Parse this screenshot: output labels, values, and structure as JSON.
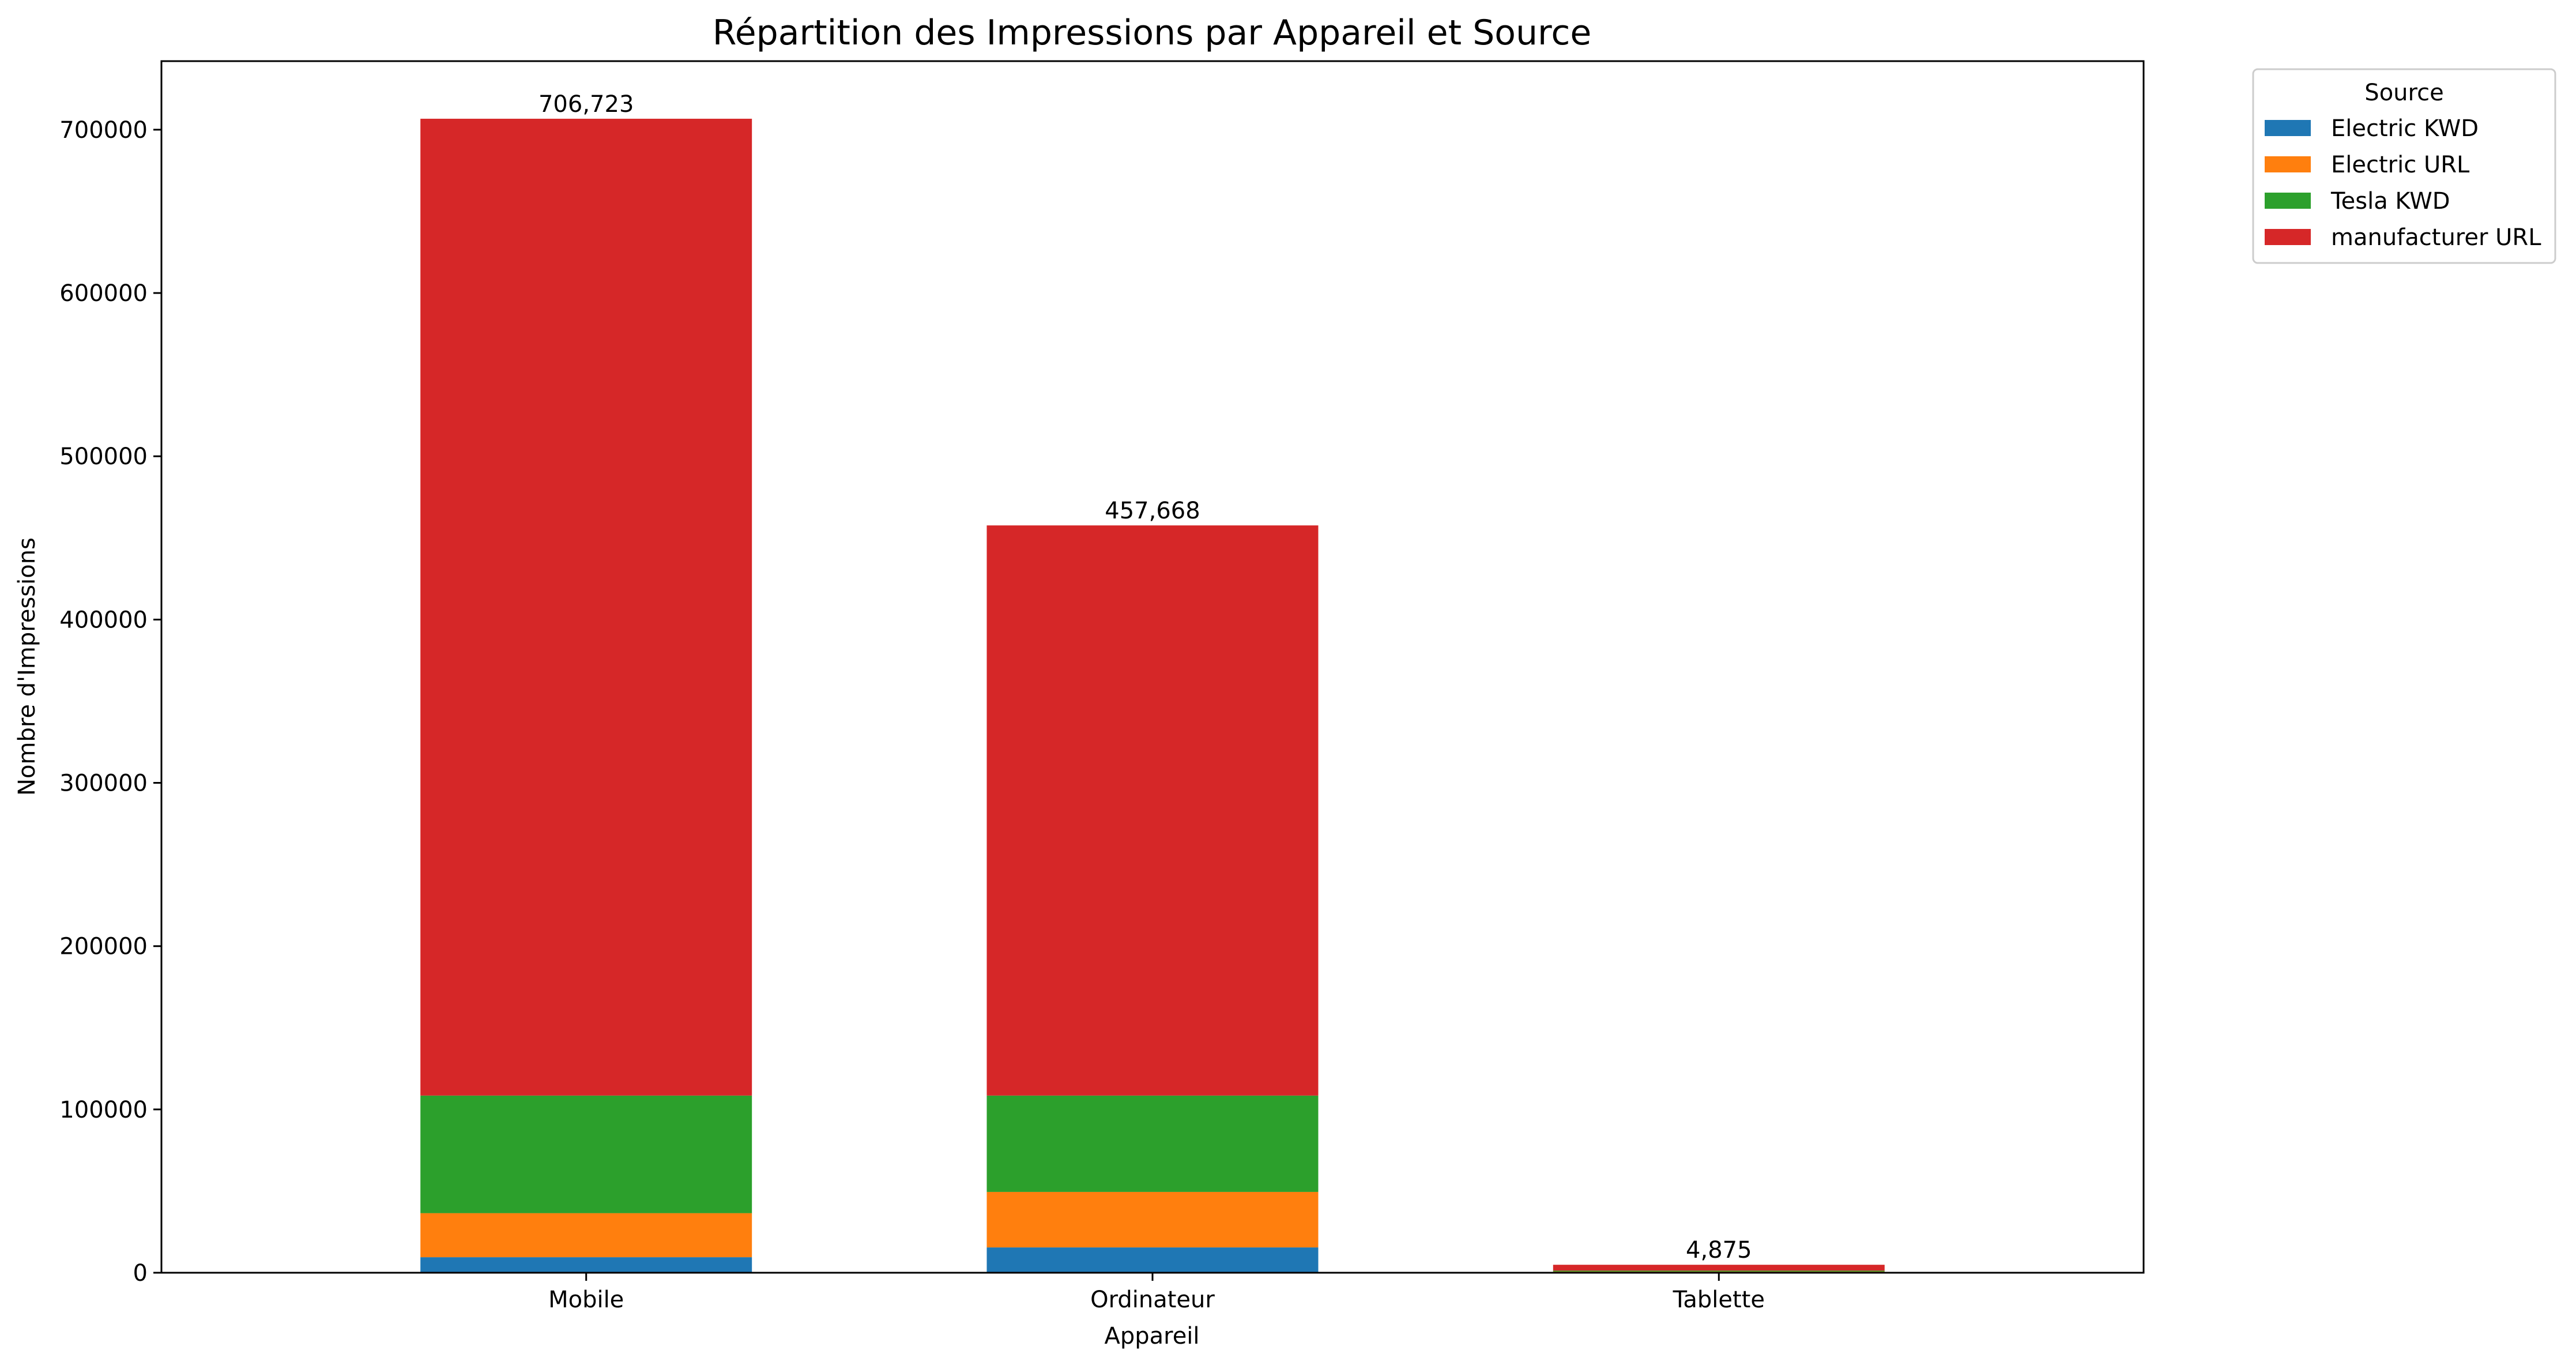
{
  "chart_data": {
    "type": "bar",
    "stacked": true,
    "title": "Répartition des Impressions par Appareil et Source",
    "xlabel": "Appareil",
    "ylabel": "Nombre d'Impressions",
    "categories": [
      "Mobile",
      "Ordinateur",
      "Tablette"
    ],
    "series": [
      {
        "name": "Electric KWD",
        "color": "#1f77b4",
        "values": [
          9500,
          15500,
          300
        ]
      },
      {
        "name": "Electric URL",
        "color": "#ff7f0e",
        "values": [
          27000,
          34000,
          400
        ]
      },
      {
        "name": "Tesla KWD",
        "color": "#2ca02c",
        "values": [
          72000,
          59000,
          600
        ]
      },
      {
        "name": "manufacturer URL",
        "color": "#d62728",
        "values": [
          598223,
          349168,
          3575
        ]
      }
    ],
    "totals": [
      706723,
      457668,
      4875
    ],
    "total_labels": [
      "706,723",
      "457,668",
      "4,875"
    ],
    "ylim": [
      0,
      742000
    ],
    "yticks": [
      0,
      100000,
      200000,
      300000,
      400000,
      500000,
      600000,
      700000
    ],
    "ytick_labels": [
      "0",
      "100000",
      "200000",
      "300000",
      "400000",
      "500000",
      "600000",
      "700000"
    ],
    "grid": false,
    "legend": {
      "title": "Source",
      "placement": "outside-top-right"
    }
  }
}
